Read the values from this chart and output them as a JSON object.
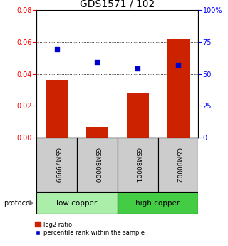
{
  "title": "GDS1571 / 102",
  "samples": [
    "GSM79999",
    "GSM80000",
    "GSM80001",
    "GSM80002"
  ],
  "log2_ratio": [
    0.036,
    0.007,
    0.028,
    0.062
  ],
  "percentile_rank": [
    69,
    59,
    54,
    57
  ],
  "bar_color": "#cc2200",
  "dot_color": "#0000cc",
  "ylim_left": [
    0,
    0.08
  ],
  "ylim_right": [
    0,
    100
  ],
  "yticks_left": [
    0,
    0.02,
    0.04,
    0.06,
    0.08
  ],
  "yticks_right": [
    0,
    25,
    50,
    75,
    100
  ],
  "ytick_labels_right": [
    "0",
    "25",
    "50",
    "75",
    "100%"
  ],
  "groups": [
    {
      "label": "low copper",
      "indices": [
        0,
        1
      ],
      "color": "#aaeeaa"
    },
    {
      "label": "high copper",
      "indices": [
        2,
        3
      ],
      "color": "#44cc44"
    }
  ],
  "protocol_label": "protocol",
  "bar_width": 0.55,
  "background_color": "#ffffff",
  "plot_bg": "#ffffff",
  "tick_label_area_color": "#cccccc",
  "grid_yticks": [
    0.02,
    0.04,
    0.06
  ]
}
